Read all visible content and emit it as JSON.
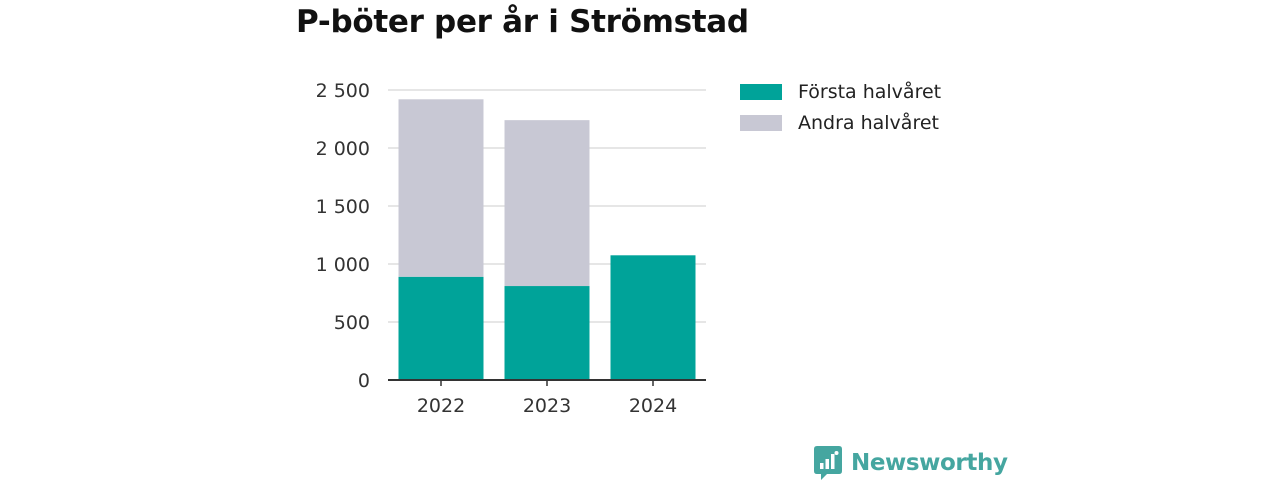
{
  "title": "P-böter per år i Strömstad",
  "chart_data": {
    "type": "bar",
    "stacked": true,
    "categories": [
      "2022",
      "2023",
      "2024"
    ],
    "series": [
      {
        "name": "Första halvåret",
        "color": "#00a399",
        "values": [
          890,
          810,
          1075
        ]
      },
      {
        "name": "Andra halvåret",
        "color": "#c8c8d4",
        "values": [
          1530,
          1430,
          0
        ]
      }
    ],
    "ylim": [
      0,
      2500
    ],
    "yticks": [
      0,
      500,
      1000,
      1500,
      2000,
      2500
    ],
    "ytick_labels": [
      "0",
      "500",
      "1 000",
      "1 500",
      "2 000",
      "2 500"
    ],
    "grid": true,
    "legend_position": "right"
  },
  "branding": {
    "logo_text": "Newsworthy",
    "logo_color": "#45a6a0"
  }
}
